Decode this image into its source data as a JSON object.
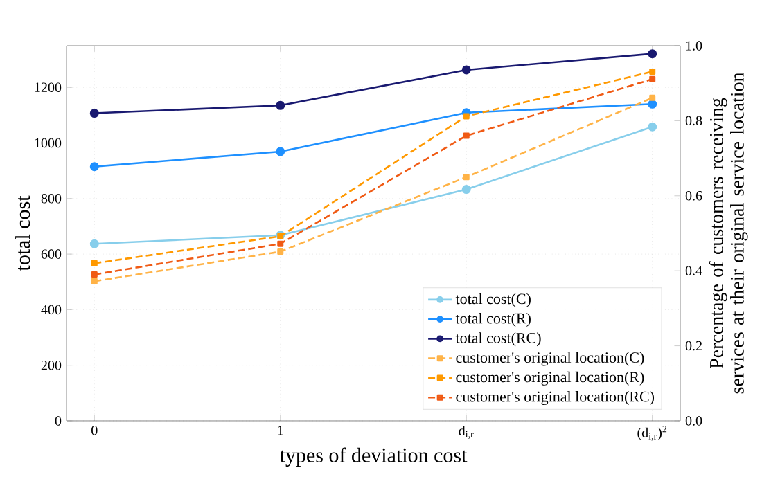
{
  "chart_data": {
    "type": "line",
    "xlabel": "types of deviation cost",
    "ylabel": "total cost",
    "y2label": "Percentage of customers receiving services at their original service location",
    "categories": [
      "0",
      "1",
      "d$_{i,r}$",
      "(d$_{i,r}$)$^{2}$"
    ],
    "ylim": [
      0,
      1350
    ],
    "yticks": [
      0,
      200,
      400,
      600,
      800,
      1000,
      1200
    ],
    "y2lim": [
      0,
      1.0
    ],
    "y2ticks": [
      {
        "value": 0,
        "label": "0.0"
      },
      0.2,
      0.4,
      0.6,
      0.8,
      {
        "value": 1,
        "label": "1.0"
      }
    ],
    "grid": true,
    "legend": "bottom right",
    "series": [
      {
        "name": "total cost(C)",
        "color": "#87ceeb",
        "marker": "circle",
        "line_style": "solid",
        "values": [
          637,
          668,
          833,
          1058
        ]
      },
      {
        "name": "total cost(R)",
        "color": "#1e90ff",
        "marker": "circle",
        "line_style": "solid",
        "values": [
          915,
          969,
          1109,
          1140
        ]
      },
      {
        "name": "total cost(RC)",
        "color": "#191970",
        "marker": "circle",
        "line_style": "solid",
        "values": [
          1107,
          1135,
          1263,
          1321
        ]
      },
      {
        "name": "customer's original location(C)",
        "color": "#ffb347",
        "marker": "square",
        "line_style": "dashed",
        "axis": "y2",
        "values": [
          0.372,
          0.451,
          0.65,
          0.861
        ]
      },
      {
        "name": "customer's original location(R)",
        "color": "#ff9900",
        "marker": "square",
        "line_style": "dashed",
        "axis": "y2",
        "values": [
          0.42,
          0.492,
          0.812,
          0.931
        ]
      },
      {
        "name": "customer's original location(RC)",
        "color": "#f05a14",
        "marker": "square",
        "line_style": "dashed",
        "axis": "y2",
        "values": [
          0.39,
          0.472,
          0.76,
          0.911
        ]
      }
    ]
  }
}
